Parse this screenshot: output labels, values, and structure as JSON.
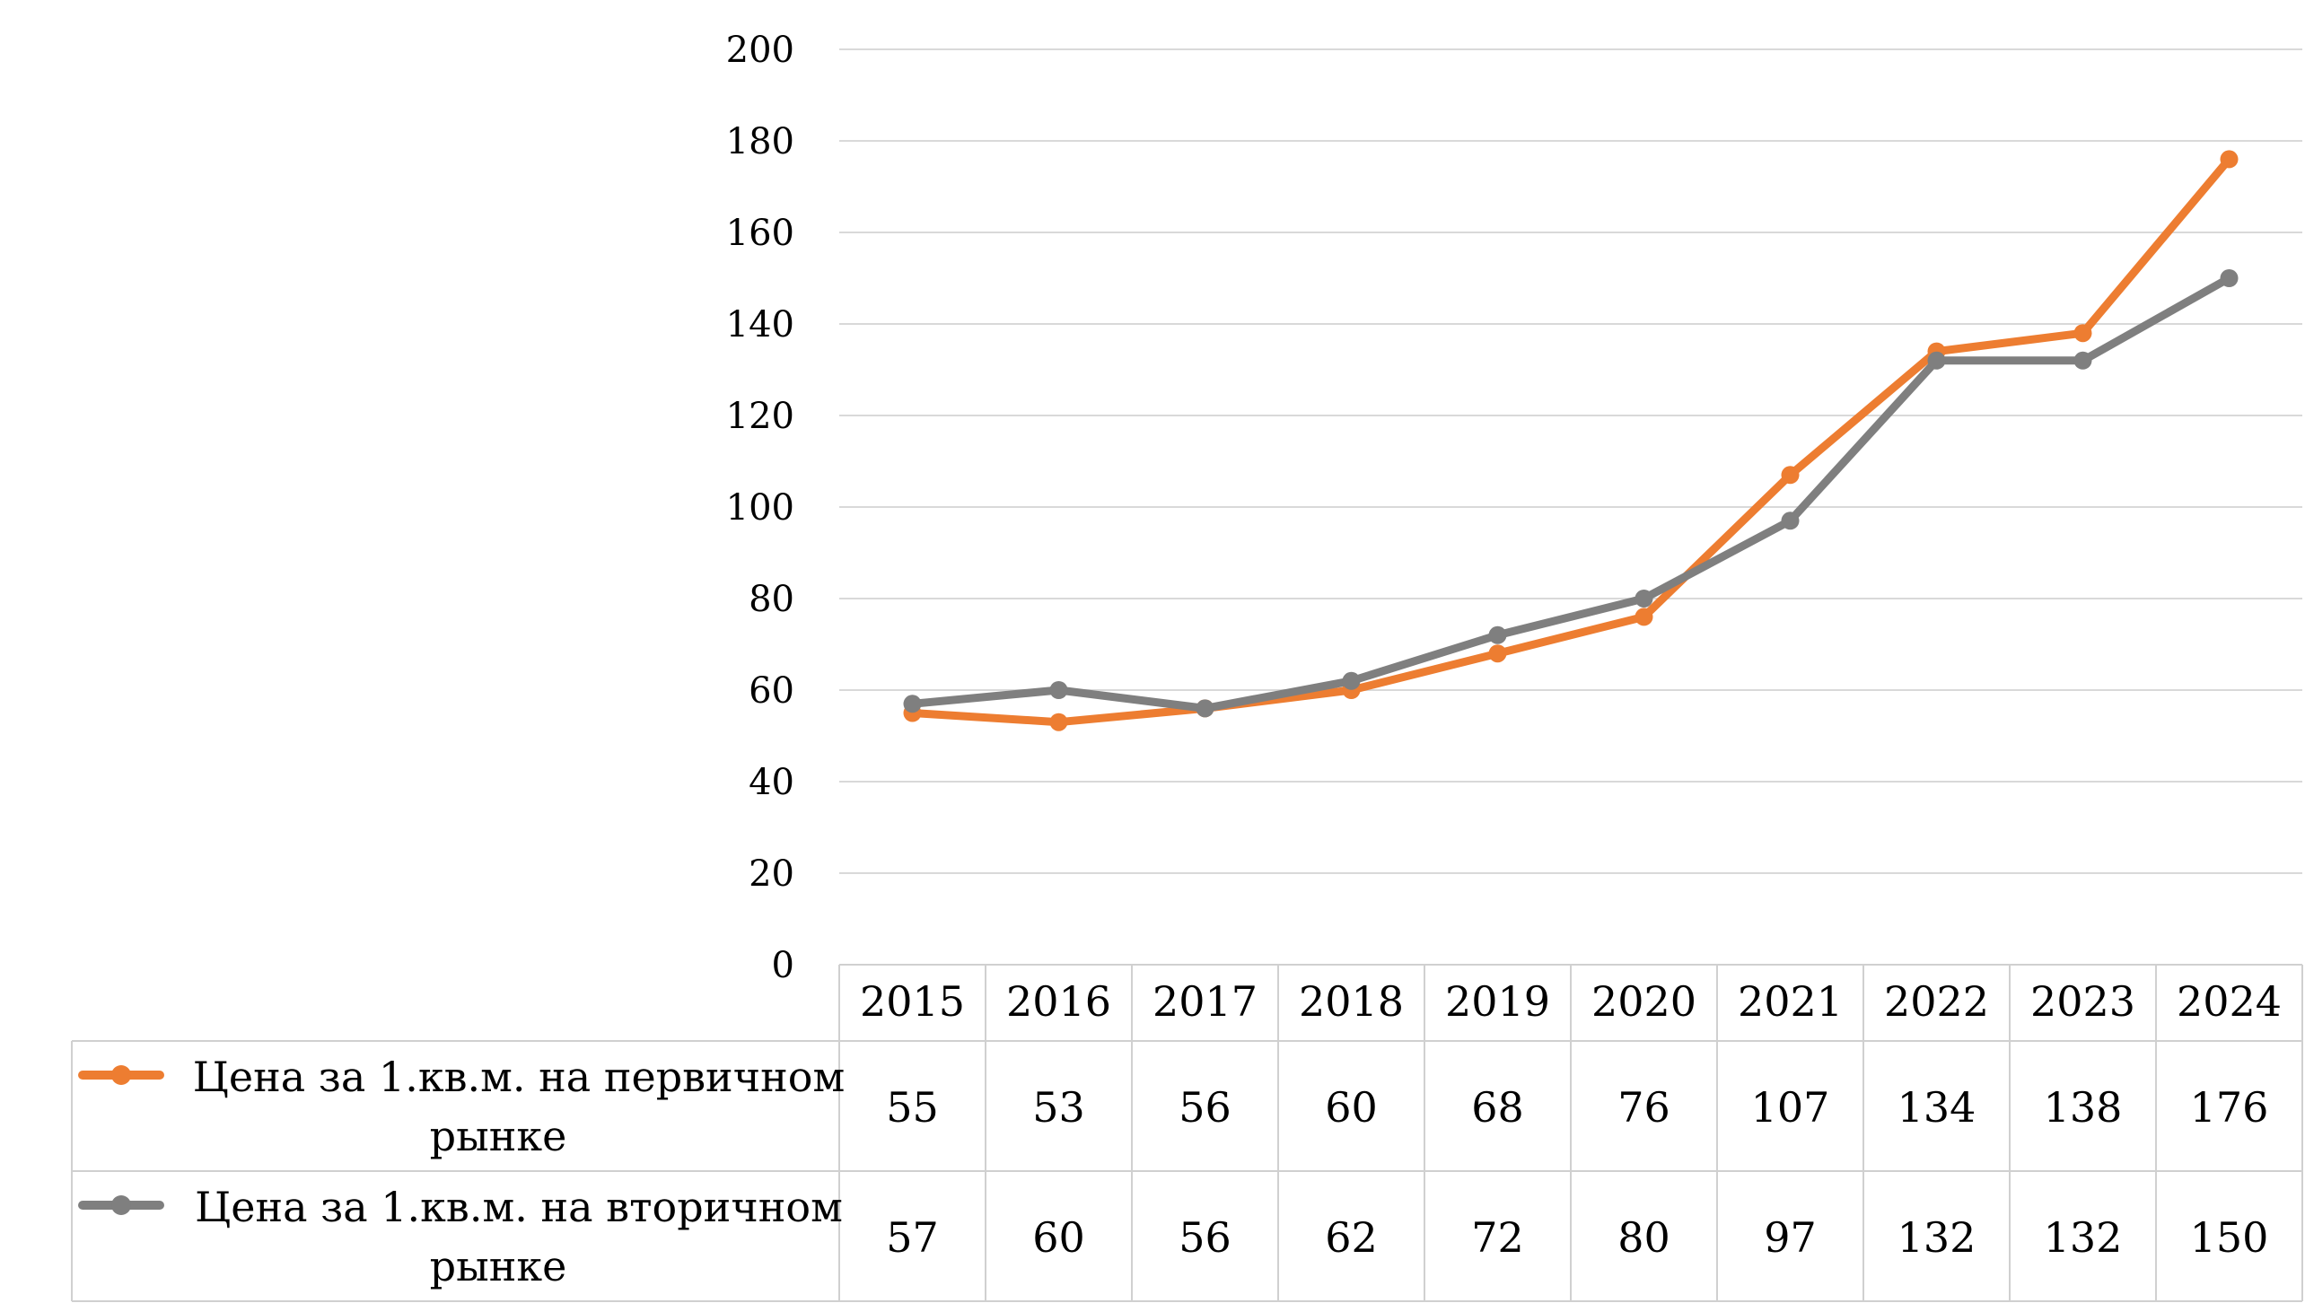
{
  "chart_data": {
    "type": "line",
    "categories": [
      "2015",
      "2016",
      "2017",
      "2018",
      "2019",
      "2020",
      "2021",
      "2022",
      "2023",
      "2024"
    ],
    "series": [
      {
        "name": "Цена за 1.кв.м. на первичном рынке",
        "name_lines": [
          "Цена за 1.кв.м. на первичном",
          "рынке"
        ],
        "color": "#ed7d31",
        "values": [
          55,
          53,
          56,
          60,
          68,
          76,
          107,
          134,
          138,
          176
        ]
      },
      {
        "name": "Цена за 1.кв.м. на вторичном рынке",
        "name_lines": [
          "Цена за 1.кв.м. на вторичном",
          "рынке"
        ],
        "color": "#7f7f7f",
        "values": [
          57,
          60,
          56,
          62,
          72,
          80,
          97,
          132,
          132,
          150
        ]
      }
    ],
    "yticks": [
      "0",
      "20",
      "40",
      "60",
      "80",
      "100",
      "120",
      "140",
      "160",
      "180",
      "200"
    ],
    "ylim": [
      0,
      200
    ],
    "grid": true,
    "legend": "data-table-below"
  }
}
